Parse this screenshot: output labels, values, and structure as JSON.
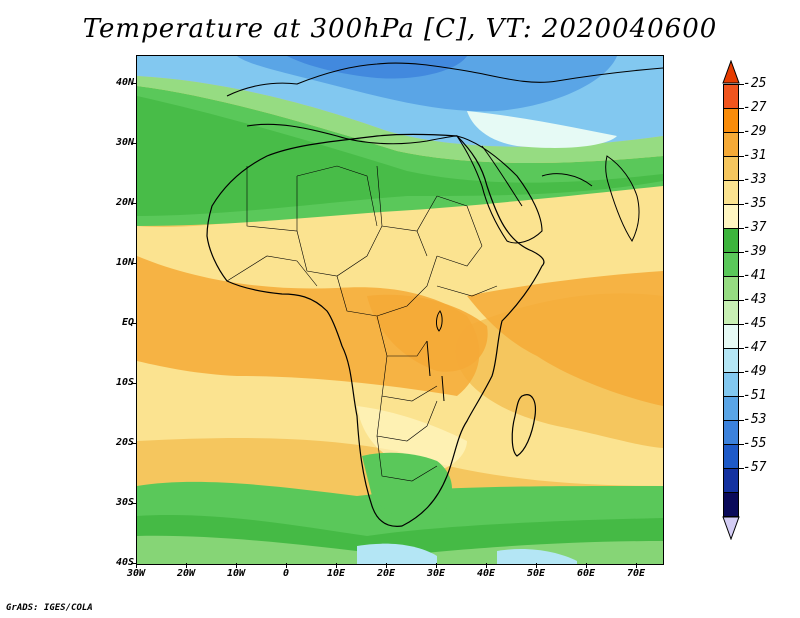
{
  "title": "Temperature at 300hPa [C], VT: 2020040600",
  "credit": "GrADS: IGES/COLA",
  "map": {
    "lon_range": [
      -30,
      75
    ],
    "lat_range": [
      -40,
      45
    ],
    "lat_ticks": [
      "40N",
      "30N",
      "20N",
      "10N",
      "EQ",
      "10S",
      "20S",
      "30S",
      "40S"
    ],
    "lon_ticks": [
      "30W",
      "20W",
      "10W",
      "0",
      "10E",
      "20E",
      "30E",
      "40E",
      "50E",
      "60E",
      "70E"
    ]
  },
  "colorbar": {
    "labels": [
      "-25",
      "-27",
      "-29",
      "-31",
      "-33",
      "-35",
      "-37",
      "-39",
      "-41",
      "-43",
      "-45",
      "-47",
      "-49",
      "-51",
      "-53",
      "-55",
      "-57"
    ],
    "colors": [
      "#f0551e",
      "#f98c0a",
      "#f5aa37",
      "#f5c65e",
      "#fbe390",
      "#fff6c2",
      "#3cb43c",
      "#5ac85a",
      "#96dc82",
      "#c8f0b4",
      "#e6faf5",
      "#b4e6f5",
      "#82c8f0",
      "#5aa5e6",
      "#3c82dc",
      "#1e5ac8",
      "#1432a0",
      "#0a0a5a"
    ],
    "top_color": "#e63c00",
    "bottom_color": "#d4cdf5"
  }
}
